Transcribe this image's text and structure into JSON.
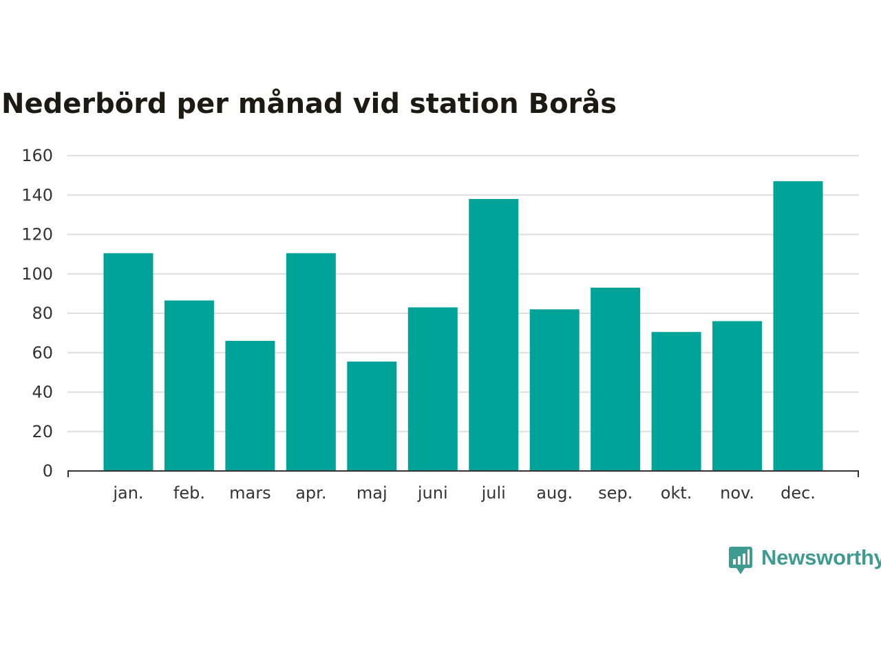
{
  "chart_data": {
    "type": "bar",
    "title": "Nederbörd per månad vid station Borås",
    "xlabel": "",
    "ylabel": "",
    "categories": [
      "jan.",
      "feb.",
      "mars",
      "apr.",
      "maj",
      "juni",
      "juli",
      "aug.",
      "sep.",
      "okt.",
      "nov.",
      "dec."
    ],
    "values": [
      110.5,
      86.5,
      66,
      110.5,
      55.5,
      83,
      138,
      82,
      93,
      70.5,
      76,
      147
    ],
    "ylim": [
      0,
      160
    ],
    "yticks": [
      "0",
      "20",
      "40",
      "60",
      "80",
      "100",
      "120",
      "140",
      "160"
    ],
    "grid": true,
    "bar_color": "#00a398"
  },
  "branding": {
    "logo_text": "Newsworthy",
    "logo_color": "#3d9c8f",
    "logo_icon": "bar-chart-speech-bubble-icon"
  }
}
